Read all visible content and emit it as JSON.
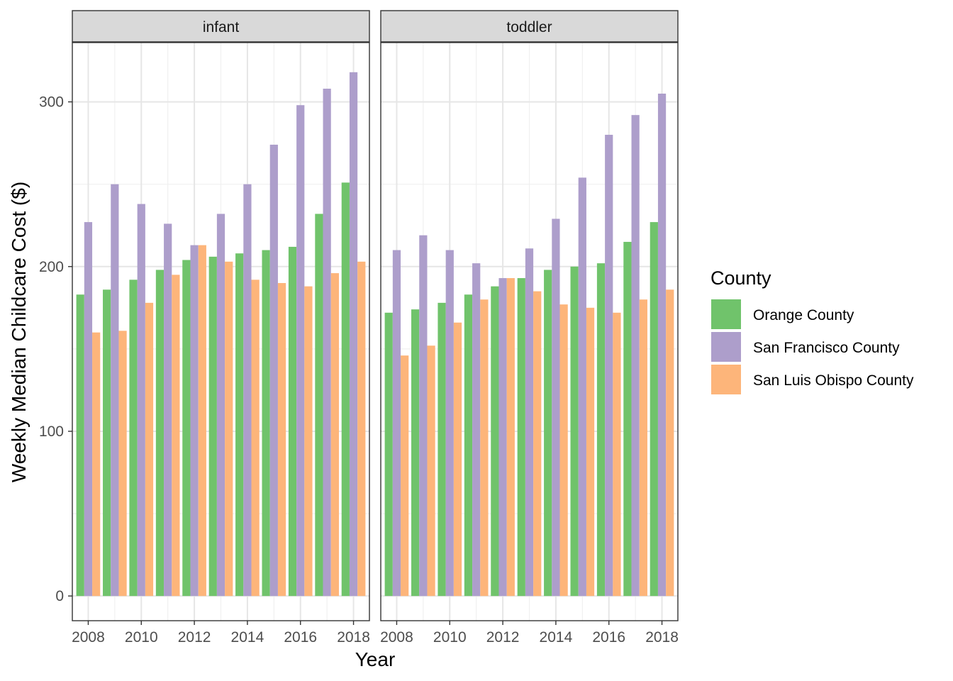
{
  "chart_data": {
    "type": "bar",
    "xlabel": "Year",
    "ylabel": "Weekly Median Childcare Cost ($)",
    "ylim": [
      -15,
      336
    ],
    "y_ticks": [
      0,
      100,
      200,
      300
    ],
    "x_ticks": [
      2008,
      2010,
      2012,
      2014,
      2016,
      2018
    ],
    "grid": true,
    "legend": {
      "title": "County",
      "position": "right",
      "entries": [
        "Orange County",
        "San Francisco County",
        "San Luis Obispo County"
      ]
    },
    "colors": {
      "Orange County": "#70c36b",
      "San Francisco County": "#ad9ecb",
      "San Luis Obispo County": "#fdb57a"
    },
    "categories": [
      2008,
      2009,
      2010,
      2011,
      2012,
      2013,
      2014,
      2015,
      2016,
      2017,
      2018
    ],
    "panels": [
      {
        "label": "infant",
        "series": [
          {
            "name": "Orange County",
            "values": [
              183,
              186,
              192,
              198,
              204,
              206,
              208,
              210,
              212,
              232,
              251
            ]
          },
          {
            "name": "San Francisco County",
            "values": [
              227,
              250,
              238,
              226,
              213,
              232,
              250,
              274,
              298,
              308,
              318
            ]
          },
          {
            "name": "San Luis Obispo County",
            "values": [
              160,
              161,
              178,
              195,
              213,
              203,
              192,
              190,
              188,
              196,
              203
            ]
          }
        ]
      },
      {
        "label": "toddler",
        "series": [
          {
            "name": "Orange County",
            "values": [
              172,
              174,
              178,
              183,
              188,
              193,
              198,
              200,
              202,
              215,
              227
            ]
          },
          {
            "name": "San Francisco County",
            "values": [
              210,
              219,
              210,
              202,
              193,
              211,
              229,
              254,
              280,
              292,
              305
            ]
          },
          {
            "name": "San Luis Obispo County",
            "values": [
              146,
              152,
              166,
              180,
              193,
              185,
              177,
              175,
              172,
              180,
              186
            ]
          }
        ]
      }
    ]
  }
}
